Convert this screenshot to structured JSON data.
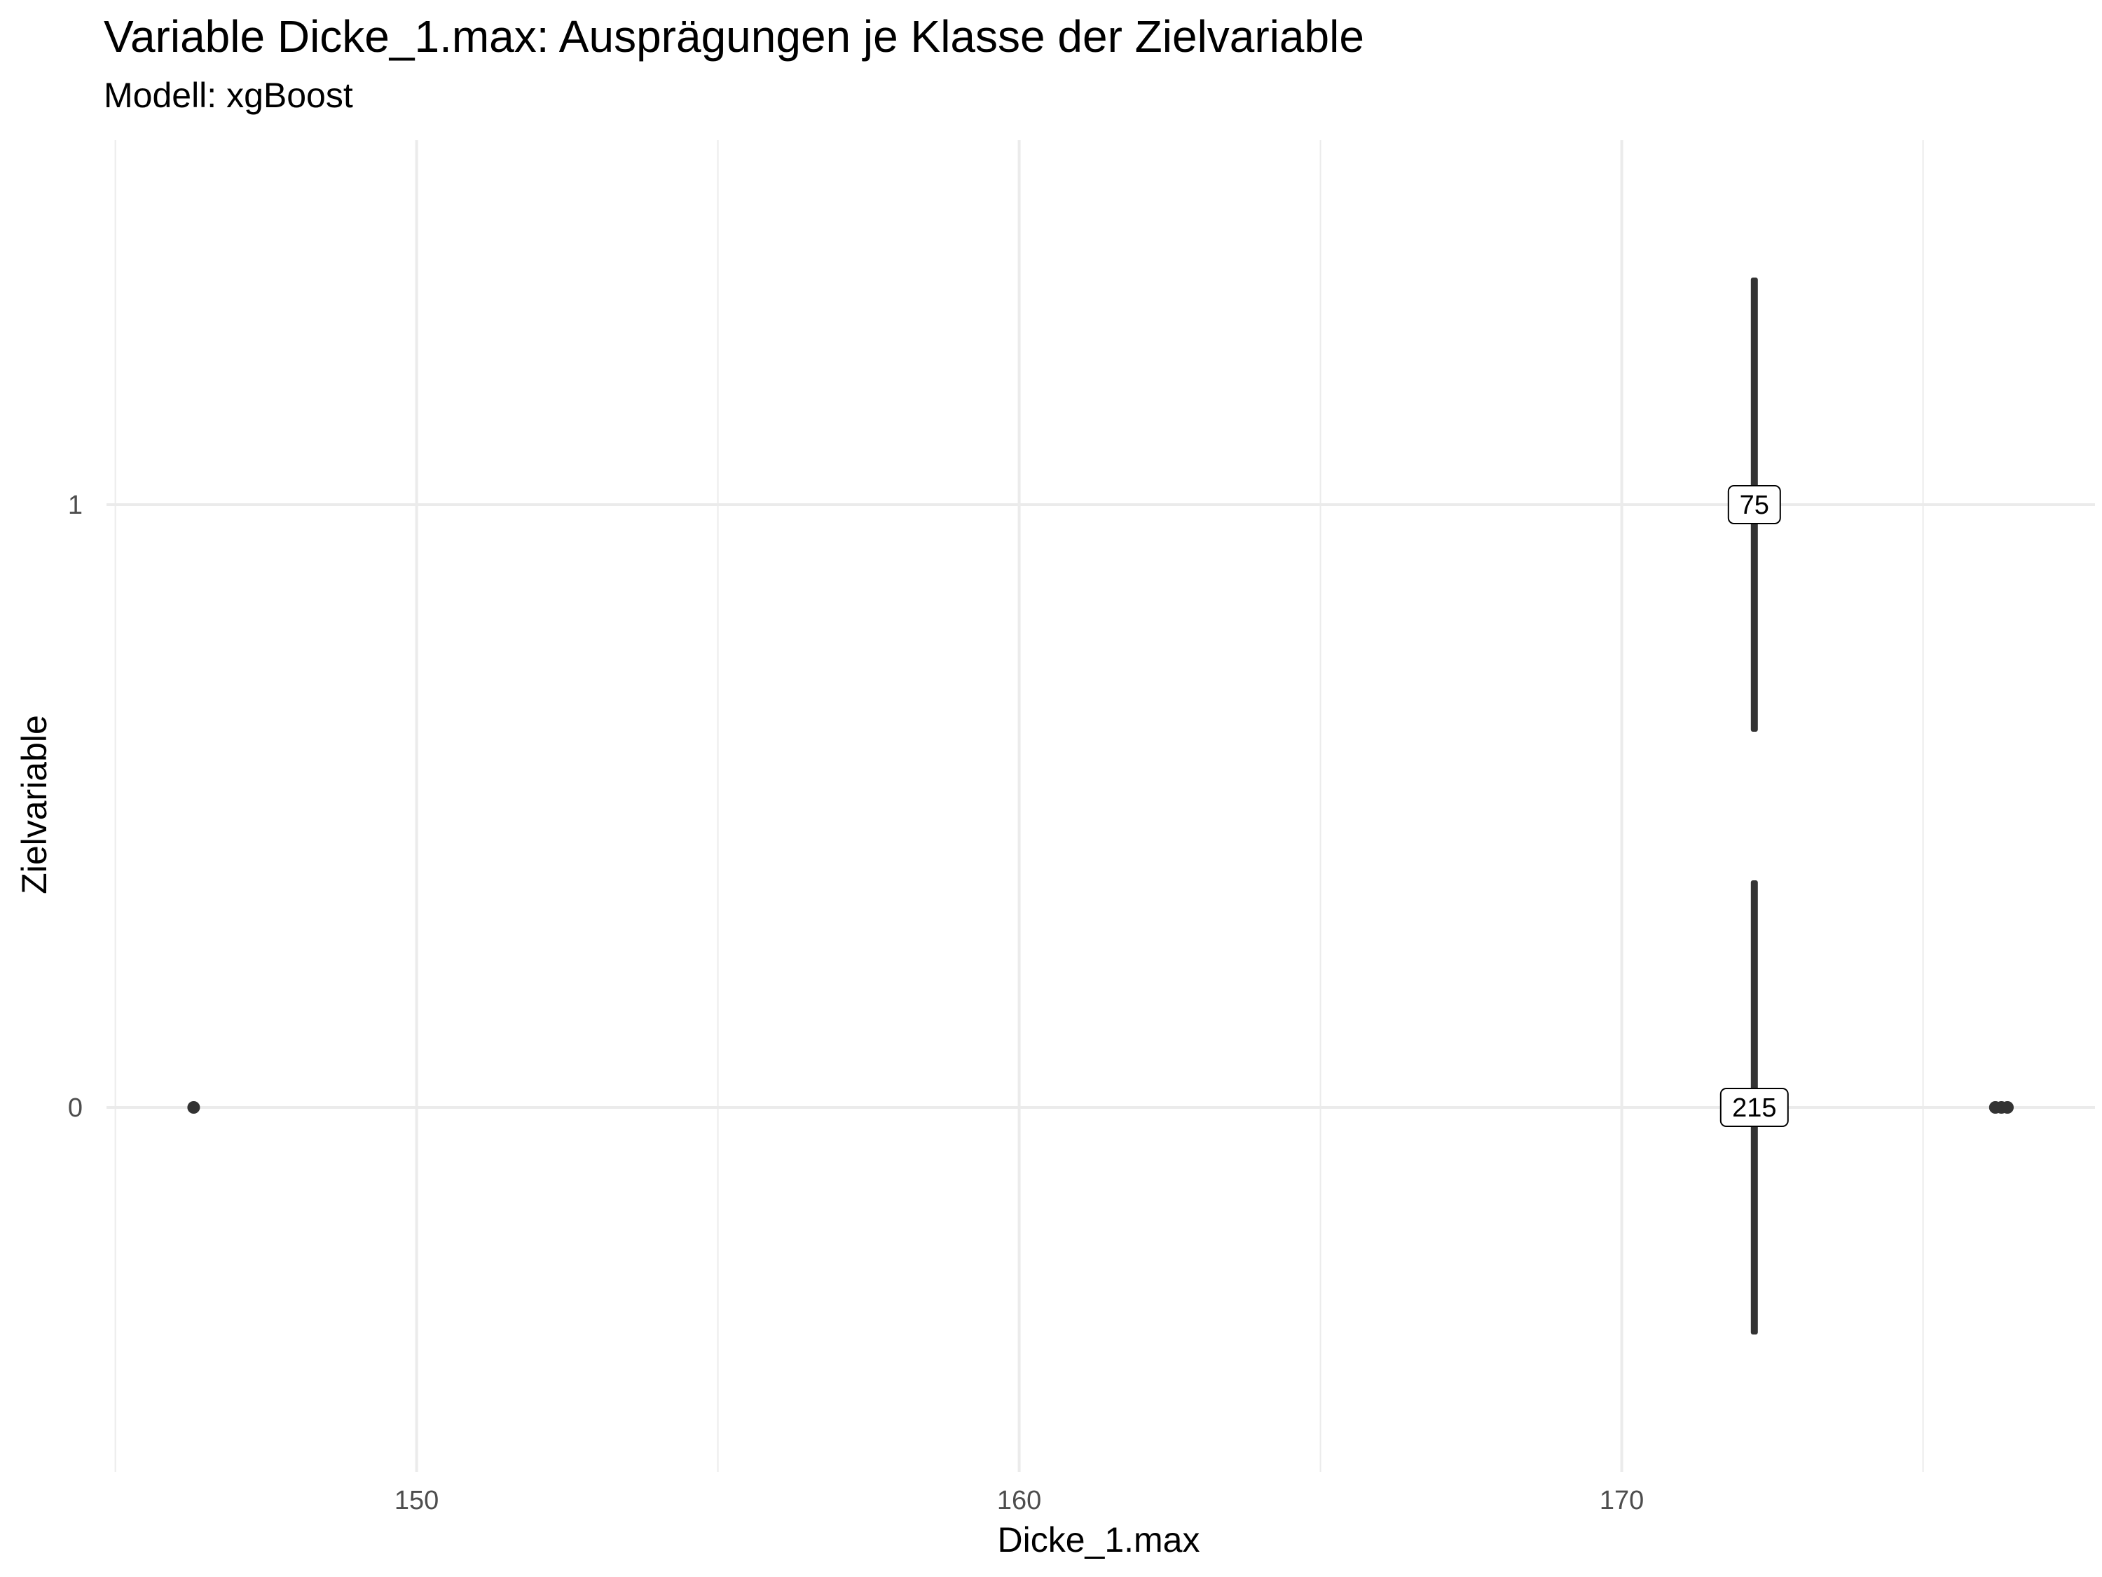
{
  "chart_data": {
    "type": "violin",
    "title": "Variable Dicke_1.max: Ausprägungen je Klasse der Zielvariable",
    "subtitle": "Modell: xgBoost",
    "xlabel": "Dicke_1.max",
    "ylabel": "Zielvariable",
    "xlim": [
      145,
      178
    ],
    "x_ticks": [
      150,
      160,
      170
    ],
    "x_minor_ticks": [
      145,
      155,
      165,
      175
    ],
    "categories": [
      "0",
      "1"
    ],
    "groups": [
      {
        "category": "1",
        "center": 172.2,
        "count_label": "75",
        "outliers": []
      },
      {
        "category": "0",
        "center": 172.2,
        "count_label": "215",
        "outliers": [
          146.3,
          176.2,
          176.3,
          176.4
        ]
      }
    ],
    "grid": true,
    "legend": "none",
    "colors": {
      "mark": "#333333",
      "grid": "#ebebeb",
      "label_box": "#ffffff"
    }
  }
}
